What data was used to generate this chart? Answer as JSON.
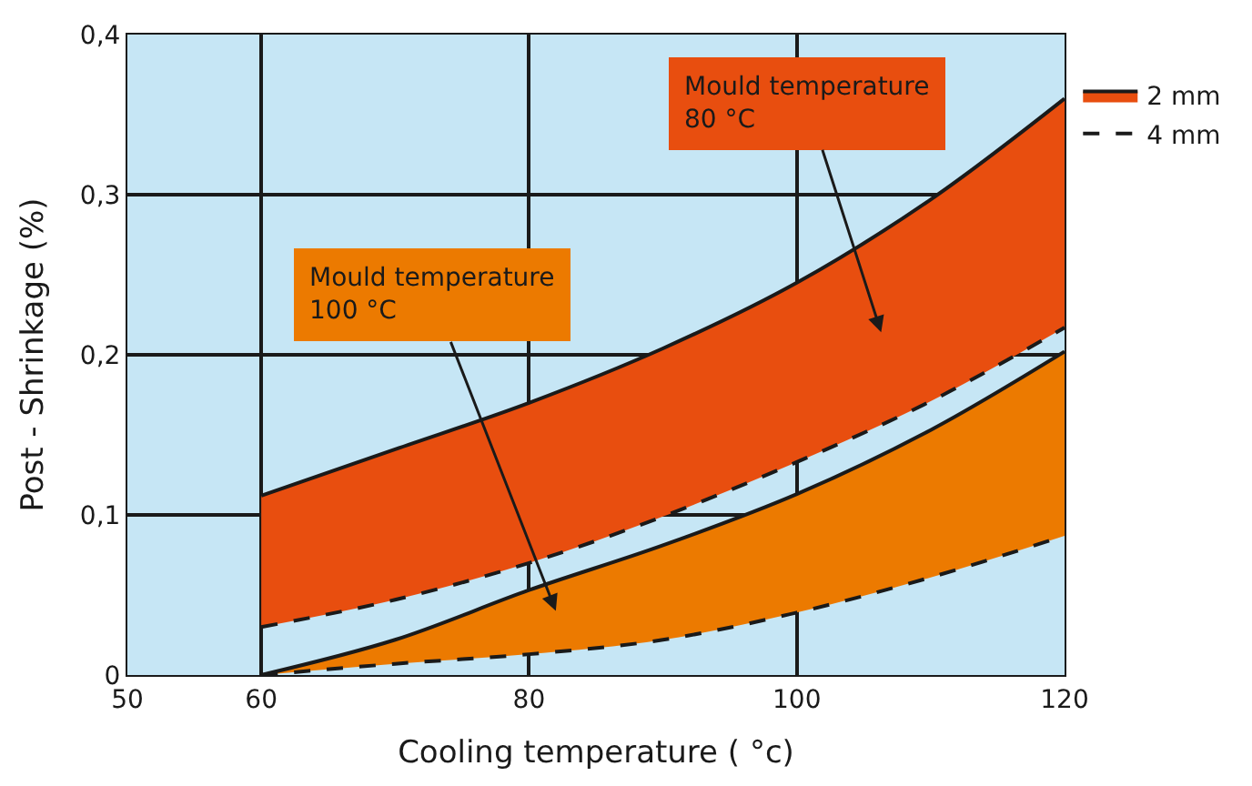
{
  "chart_data": {
    "type": "line",
    "xlabel": "Cooling temperature ( °c)",
    "ylabel": "Post - Shrinkage (%)",
    "x": [
      60,
      70,
      80,
      90,
      100,
      110,
      120
    ],
    "series": [
      {
        "name": "4 mm",
        "color": "#1a1a1a",
        "line_style": "dashed",
        "values": [
          0.03,
          0.047,
          0.07,
          0.099,
          0.133,
          0.171,
          0.217
        ]
      },
      {
        "type": "area",
        "name": "2 mm",
        "color": "#e84e0f",
        "line_style": "solid",
        "values": [
          0.112,
          0.141,
          0.17,
          0.204,
          0.245,
          0.297,
          0.36
        ]
      },
      {
        "color": "#1a1a1a",
        "line_style": "dashed",
        "values": [
          0,
          0.007,
          0.013,
          0.022,
          0.039,
          0.061,
          0.087
        ]
      },
      {
        "type": "area",
        "color": "#ec7a00",
        "line_style": "solid",
        "values": [
          0,
          0.022,
          0.053,
          0.081,
          0.113,
          0.153,
          0.202
        ]
      }
    ],
    "annotations": [
      "Mould temperature\n80 °C",
      "Mould temperature\n100 °C"
    ],
    "xlim": [
      50,
      120
    ],
    "xticks": [
      50,
      60,
      80,
      100,
      120
    ],
    "ylim": [
      0,
      0.4
    ],
    "yticks": [
      {
        "value": 0,
        "label": "0"
      },
      {
        "value": 0.1,
        "label": "0,1"
      },
      {
        "value": 0.2,
        "label": "0,2"
      },
      {
        "value": 0.3,
        "label": "0,3"
      },
      {
        "value": 0.4,
        "label": "0,4"
      }
    ],
    "grid": true,
    "legend": "right",
    "marker": "none"
  }
}
